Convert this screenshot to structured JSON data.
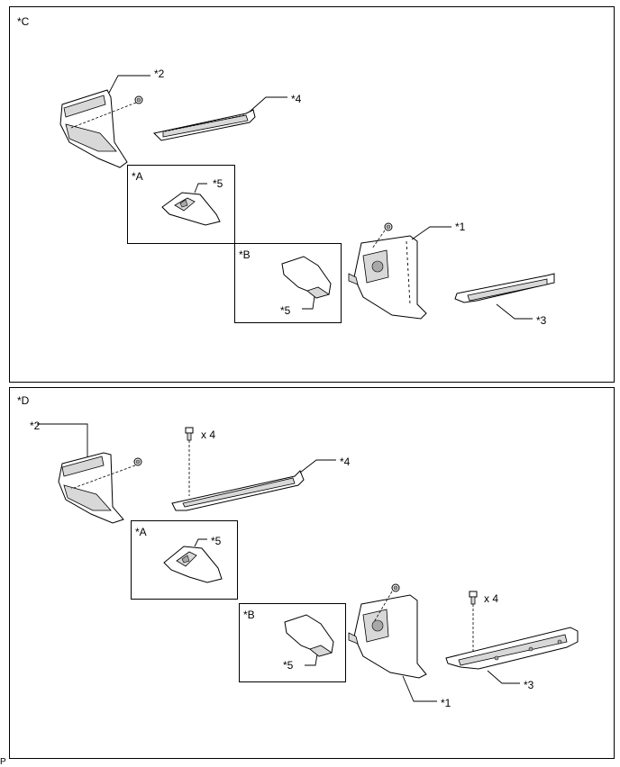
{
  "panels": {
    "c": {
      "label": "*C",
      "callouts": {
        "p2": "*2",
        "p4": "*4",
        "p1": "*1",
        "p3": "*3"
      },
      "inset_a": {
        "label": "*A",
        "part": "*5"
      },
      "inset_b": {
        "label": "*B",
        "part": "*5"
      }
    },
    "d": {
      "label": "*D",
      "callouts": {
        "p2": "*2",
        "p4": "*4",
        "p1": "*1",
        "p3": "*3",
        "qty_left": "x 4",
        "qty_right": "x 4"
      },
      "inset_a": {
        "label": "*A",
        "part": "*5"
      },
      "inset_b": {
        "label": "*B",
        "part": "*5"
      }
    }
  },
  "footer_code": "P"
}
